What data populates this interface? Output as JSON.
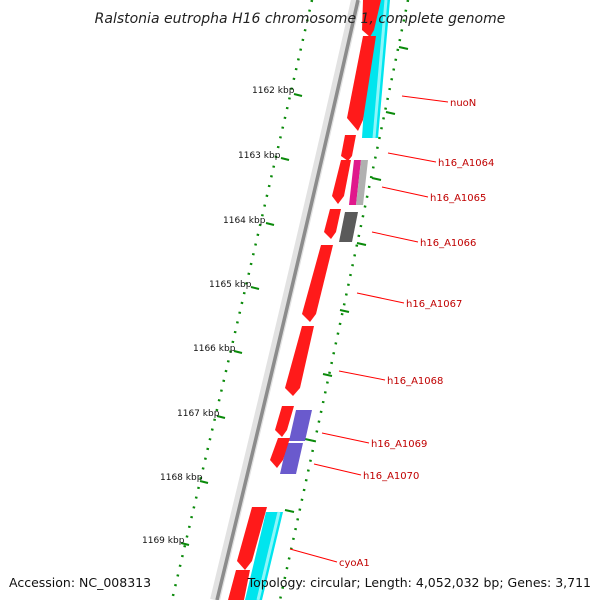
{
  "title": "Ralstonia eutropha H16 chromosome 1, complete genome",
  "footer": {
    "accession": "Accession: NC_008313",
    "topology": "Topology: circular; Length: 4,052,032 bp; Genes: 3,711"
  },
  "scale_labels": [
    "1162 kbp",
    "1163 kbp",
    "1164 kbp",
    "1165 kbp",
    "1166 kbp",
    "1167 kbp",
    "1168 kbp",
    "1169 kbp"
  ],
  "gene_labels": [
    "nuoN",
    "h16_A1064",
    "h16_A1065",
    "h16_A1066",
    "h16_A1067",
    "h16_A1068",
    "h16_A1069",
    "h16_A1070",
    "cyoA1"
  ],
  "colors": {
    "cds_red": "#ff1a1a",
    "tick_green": "#0a8a0a",
    "backbone_gray": "#8c8c8c",
    "cyan_feature": "#00e5ee",
    "magenta_feature": "#e0188c",
    "purple_feature": "#6a5acd",
    "dark_gray_feature": "#5a5a5a",
    "label_red": "#c00000"
  }
}
